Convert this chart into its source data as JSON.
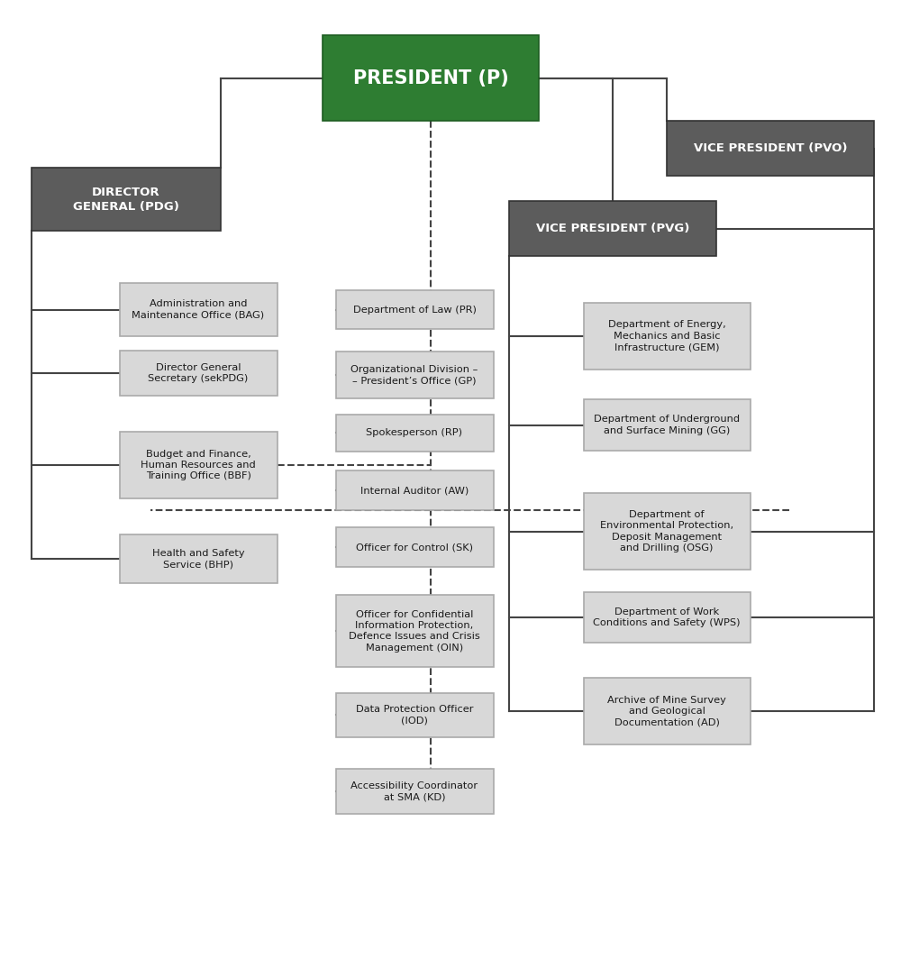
{
  "president_color": "#2e7d32",
  "president_text_color": "#ffffff",
  "header_color": "#5c5c5c",
  "header_text_color": "#ffffff",
  "box_fill": "#d8d8d8",
  "box_text_color": "#1a1a1a",
  "line_color": "#444444",
  "background_color": "#ffffff",
  "pos": {
    "president": [
      0.478,
      0.92,
      0.24,
      0.088
    ],
    "vp_pvo": [
      0.855,
      0.848,
      0.23,
      0.056
    ],
    "dir_general": [
      0.14,
      0.796,
      0.21,
      0.064
    ],
    "vp_pvg": [
      0.68,
      0.766,
      0.23,
      0.056
    ],
    "admin": [
      0.22,
      0.683,
      0.175,
      0.054
    ],
    "dir_sec": [
      0.22,
      0.618,
      0.175,
      0.046
    ],
    "budget": [
      0.22,
      0.524,
      0.175,
      0.068
    ],
    "health": [
      0.22,
      0.428,
      0.175,
      0.05
    ],
    "law": [
      0.46,
      0.683,
      0.175,
      0.04
    ],
    "org_div": [
      0.46,
      0.616,
      0.175,
      0.048
    ],
    "spokesperson": [
      0.46,
      0.557,
      0.175,
      0.038
    ],
    "auditor": [
      0.46,
      0.498,
      0.175,
      0.04
    ],
    "control": [
      0.46,
      0.44,
      0.175,
      0.04
    ],
    "confidential": [
      0.46,
      0.354,
      0.175,
      0.074
    ],
    "data_prot": [
      0.46,
      0.268,
      0.175,
      0.046
    ],
    "accessibility": [
      0.46,
      0.19,
      0.175,
      0.046
    ],
    "energy": [
      0.74,
      0.656,
      0.185,
      0.068
    ],
    "underground": [
      0.74,
      0.565,
      0.185,
      0.052
    ],
    "environmental": [
      0.74,
      0.456,
      0.185,
      0.078
    ],
    "work_cond": [
      0.74,
      0.368,
      0.185,
      0.052
    ],
    "archive": [
      0.74,
      0.272,
      0.185,
      0.068
    ]
  },
  "labels": {
    "president": "PRESIDENT (P)",
    "vp_pvo": "VICE PRESIDENT (PVO)",
    "dir_general": "DIRECTOR\nGENERAL (PDG)",
    "vp_pvg": "VICE PRESIDENT (PVG)",
    "admin": "Administration and\nMaintenance Office (BAG)",
    "dir_sec": "Director General\nSecretary (sekPDG)",
    "budget": "Budget and Finance,\nHuman Resources and\nTraining Office (BBF)",
    "health": "Health and Safety\nService (BHP)",
    "law": "Department of Law (PR)",
    "org_div": "Organizational Division –\n– President’s Office (GP)",
    "spokesperson": "Spokesperson (RP)",
    "auditor": "Internal Auditor (AW)",
    "control": "Officer for Control (SK)",
    "confidential": "Officer for Confidential\nInformation Protection,\nDefence Issues and Crisis\nManagement (OIN)",
    "data_prot": "Data Protection Officer\n(IOD)",
    "accessibility": "Accessibility Coordinator\nat SMA (KD)",
    "energy": "Department of Energy,\nMechanics and Basic\nInfrastructure (GEM)",
    "underground": "Department of Underground\nand Surface Mining (GG)",
    "environmental": "Department of\nEnvironmental Protection,\nDeposit Management\nand Drilling (OSG)",
    "work_cond": "Department of Work\nConditions and Safety (WPS)",
    "archive": "Archive of Mine Survey\nand Geological\nDocumentation (AD)"
  }
}
